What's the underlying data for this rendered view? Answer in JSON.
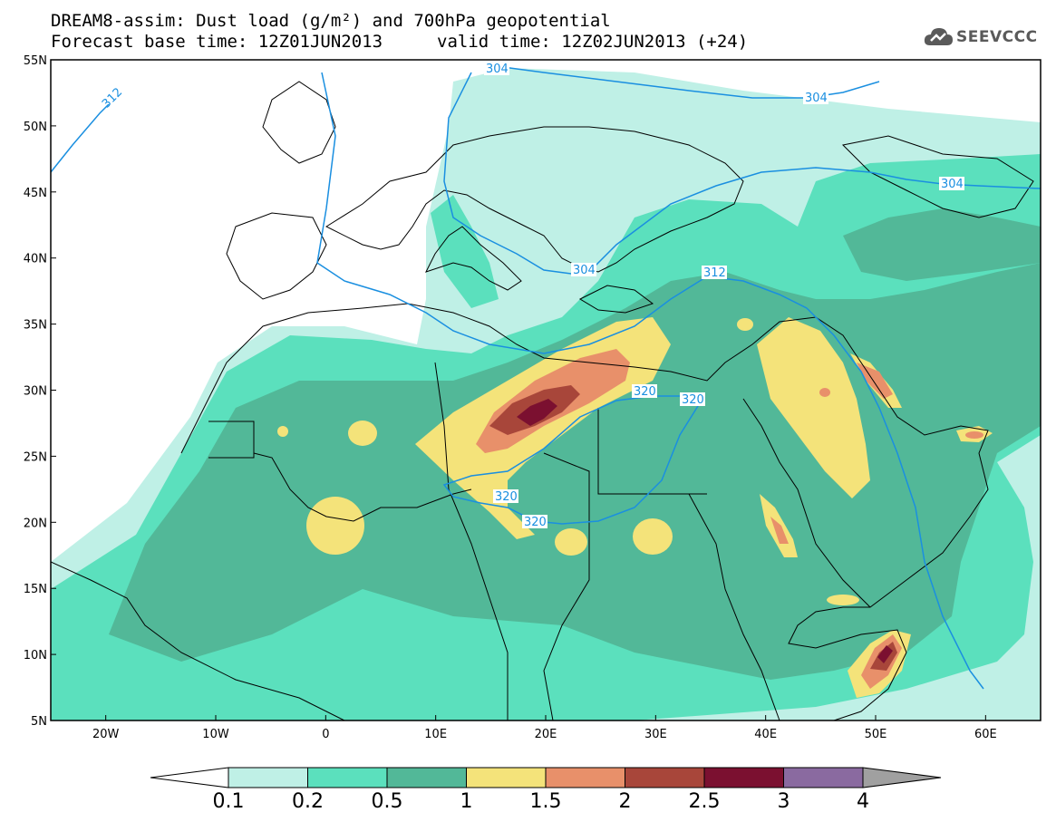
{
  "title": {
    "line1": "DREAM8-assim: Dust load (g/m²) and 700hPa geopotential",
    "line2": "Forecast base time: 12Z01JUN2013",
    "valid": "valid time: 12Z02JUN2013 (+24)"
  },
  "logo": {
    "icon": "cloud-icon",
    "text": "SEEVCCC"
  },
  "axes": {
    "lat_labels": [
      "55N",
      "50N",
      "45N",
      "40N",
      "35N",
      "30N",
      "25N",
      "20N",
      "15N",
      "10N",
      "5N"
    ],
    "lon_labels": [
      "20W",
      "10W",
      "0",
      "10E",
      "20E",
      "30E",
      "40E",
      "50E",
      "60E"
    ],
    "lat_range": [
      5,
      55
    ],
    "lon_range": [
      -25,
      65
    ]
  },
  "colorbar": {
    "levels": [
      "0.1",
      "0.2",
      "0.5",
      "1",
      "1.5",
      "2",
      "2.5",
      "3",
      "4"
    ],
    "colors": [
      "#bff0e6",
      "#5be0bd",
      "#52b898",
      "#f4e37a",
      "#e8906a",
      "#a8463a",
      "#7b1030",
      "#8a6aa0"
    ],
    "under_color": "#ffffff",
    "over_color": "#a0a0a0"
  },
  "contours": {
    "color": "#1a8fe0",
    "labels": [
      "312",
      "304",
      "304",
      "304",
      "312",
      "320",
      "320",
      "320",
      "320",
      "304"
    ]
  }
}
